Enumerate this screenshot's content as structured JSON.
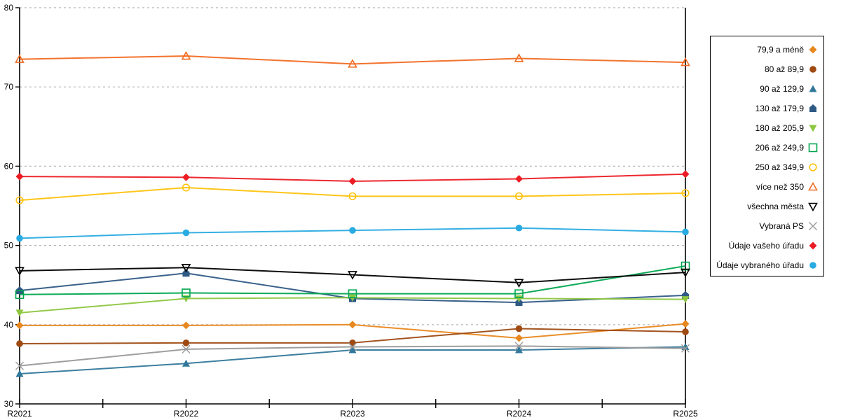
{
  "chart_data": {
    "type": "line",
    "title": "",
    "xlabel": "",
    "ylabel": "",
    "x_categories": [
      "R2021",
      "R2022",
      "R2023",
      "R2024",
      "R2025"
    ],
    "y_axis": {
      "min": 30,
      "max": 80,
      "tick_step": 10,
      "tick_labels": [
        "30",
        "40",
        "50",
        "60",
        "70",
        "80"
      ],
      "gridline_values": [
        40,
        50,
        60,
        70,
        80
      ],
      "grid_style": "dashed"
    },
    "legend_position": "right",
    "grid_color": "#b3b3b3",
    "axis_color": "#000000",
    "series": [
      {
        "name": "79,9 a méně",
        "marker": "diamond",
        "fill": "filled",
        "color": "#E8871E",
        "values": [
          39.9,
          39.9,
          40.0,
          38.3,
          40.1
        ]
      },
      {
        "name": "80 až 89,9",
        "marker": "circle",
        "fill": "filled",
        "color": "#9E4A12",
        "values": [
          37.6,
          37.7,
          37.7,
          39.5,
          39.1
        ]
      },
      {
        "name": "90 až 129,9",
        "marker": "triangle-up",
        "fill": "filled",
        "color": "#31789B",
        "values": [
          33.8,
          35.1,
          36.8,
          36.8,
          37.2
        ]
      },
      {
        "name": "130 až 179,9",
        "marker": "pentagon",
        "fill": "filled",
        "color": "#2E5984",
        "values": [
          44.3,
          46.5,
          43.3,
          42.8,
          43.7
        ]
      },
      {
        "name": "180 až 205,9",
        "marker": "triangle-down",
        "fill": "filled",
        "color": "#8DC63F",
        "values": [
          41.5,
          43.3,
          43.4,
          43.3,
          43.2
        ]
      },
      {
        "name": "206 až 249,9",
        "marker": "square",
        "fill": "open",
        "color": "#00A64F",
        "values": [
          43.8,
          44.0,
          43.9,
          43.9,
          47.4
        ]
      },
      {
        "name": "250 až 349,9",
        "marker": "circle",
        "fill": "open",
        "color": "#FFC20E",
        "values": [
          55.7,
          57.3,
          56.2,
          56.2,
          56.6
        ]
      },
      {
        "name": "více než 350",
        "marker": "triangle-up",
        "fill": "open",
        "color": "#F26C22",
        "values": [
          73.5,
          73.9,
          72.9,
          73.6,
          73.1
        ]
      },
      {
        "name": "všechna města",
        "marker": "triangle-down",
        "fill": "open",
        "color": "#000000",
        "values": [
          46.8,
          47.2,
          46.3,
          45.3,
          46.6
        ]
      },
      {
        "name": "Vybraná PS",
        "marker": "x",
        "fill": "open",
        "color": "#999999",
        "values": [
          34.8,
          36.9,
          37.2,
          37.3,
          37.0
        ]
      },
      {
        "name": "Údaje vašeho úřadu",
        "marker": "diamond",
        "fill": "filled",
        "color": "#EC1C24",
        "values": [
          58.7,
          58.6,
          58.1,
          58.4,
          59.0
        ]
      },
      {
        "name": "Údaje vybraného úřadu",
        "marker": "circle",
        "fill": "filled",
        "color": "#29ABE2",
        "values": [
          50.9,
          51.6,
          51.9,
          52.2,
          51.7
        ]
      }
    ]
  }
}
